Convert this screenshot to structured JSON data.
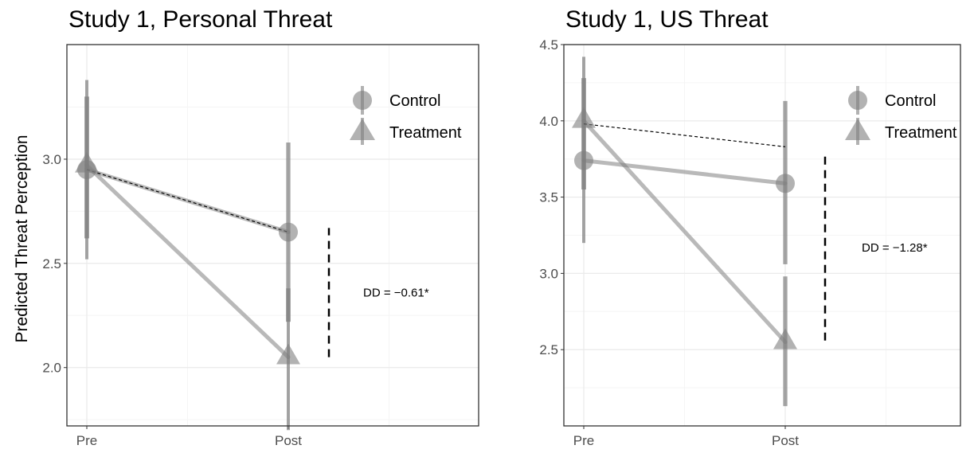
{
  "y_axis_label": "Predicted Threat Perception",
  "legend": {
    "control": "Control",
    "treatment": "Treatment"
  },
  "chart_data": [
    {
      "type": "line",
      "title": "Study 1, Personal Threat",
      "xlabel": "",
      "ylabel": "Predicted Threat Perception",
      "categories": [
        "Pre",
        "Post"
      ],
      "ylim": [
        1.72,
        3.55
      ],
      "yticks": [
        2.0,
        2.5,
        3.0
      ],
      "ytick_labels": [
        "2.0",
        "2.5",
        "3.0"
      ],
      "grid": true,
      "legend_position": "top-right",
      "series": [
        {
          "name": "Control",
          "marker": "circle",
          "values": [
            2.95,
            2.65
          ],
          "ci_outer": [
            [
              2.52,
              3.38
            ],
            [
              1.7,
              3.08
            ]
          ],
          "ci_inner": [
            [
              2.62,
              3.3
            ],
            [
              2.22,
              3.08
            ]
          ]
        },
        {
          "name": "Treatment",
          "marker": "triangle",
          "values": [
            2.97,
            2.05
          ],
          "ci_outer": [
            [
              2.52,
              3.38
            ],
            [
              1.7,
              2.38
            ]
          ],
          "ci_inner": [
            [
              2.62,
              3.3
            ],
            [
              2.22,
              2.38
            ]
          ]
        }
      ],
      "counterfactual": {
        "style": "dashed",
        "from": 2.95,
        "to": 2.65
      },
      "annotation": {
        "text": "DD = −0.61*",
        "range": [
          2.05,
          2.67
        ]
      }
    },
    {
      "type": "line",
      "title": "Study 1, US Threat",
      "xlabel": "",
      "ylabel": "",
      "categories": [
        "Pre",
        "Post"
      ],
      "ylim": [
        2.0,
        4.5
      ],
      "yticks": [
        2.5,
        3.0,
        3.5,
        4.0,
        4.5
      ],
      "ytick_labels": [
        "2.5",
        "3.0",
        "3.5",
        "4.0",
        "4.5"
      ],
      "grid": true,
      "legend_position": "top-right",
      "series": [
        {
          "name": "Control",
          "marker": "circle",
          "values": [
            3.74,
            3.59
          ],
          "ci_outer": [
            [
              3.2,
              4.42
            ],
            [
              3.06,
              4.13
            ]
          ],
          "ci_inner": [
            [
              3.55,
              4.28
            ],
            [
              3.06,
              4.13
            ]
          ]
        },
        {
          "name": "Treatment",
          "marker": "triangle",
          "values": [
            4.0,
            2.55
          ],
          "ci_outer": [
            [
              3.2,
              4.42
            ],
            [
              2.13,
              2.98
            ]
          ],
          "ci_inner": [
            [
              3.55,
              4.28
            ],
            [
              2.13,
              2.98
            ]
          ]
        }
      ],
      "counterfactual": {
        "style": "dashed",
        "from": 3.98,
        "to": 3.83
      },
      "annotation": {
        "text": "DD = −1.28*",
        "range": [
          2.56,
          3.78
        ]
      }
    }
  ]
}
